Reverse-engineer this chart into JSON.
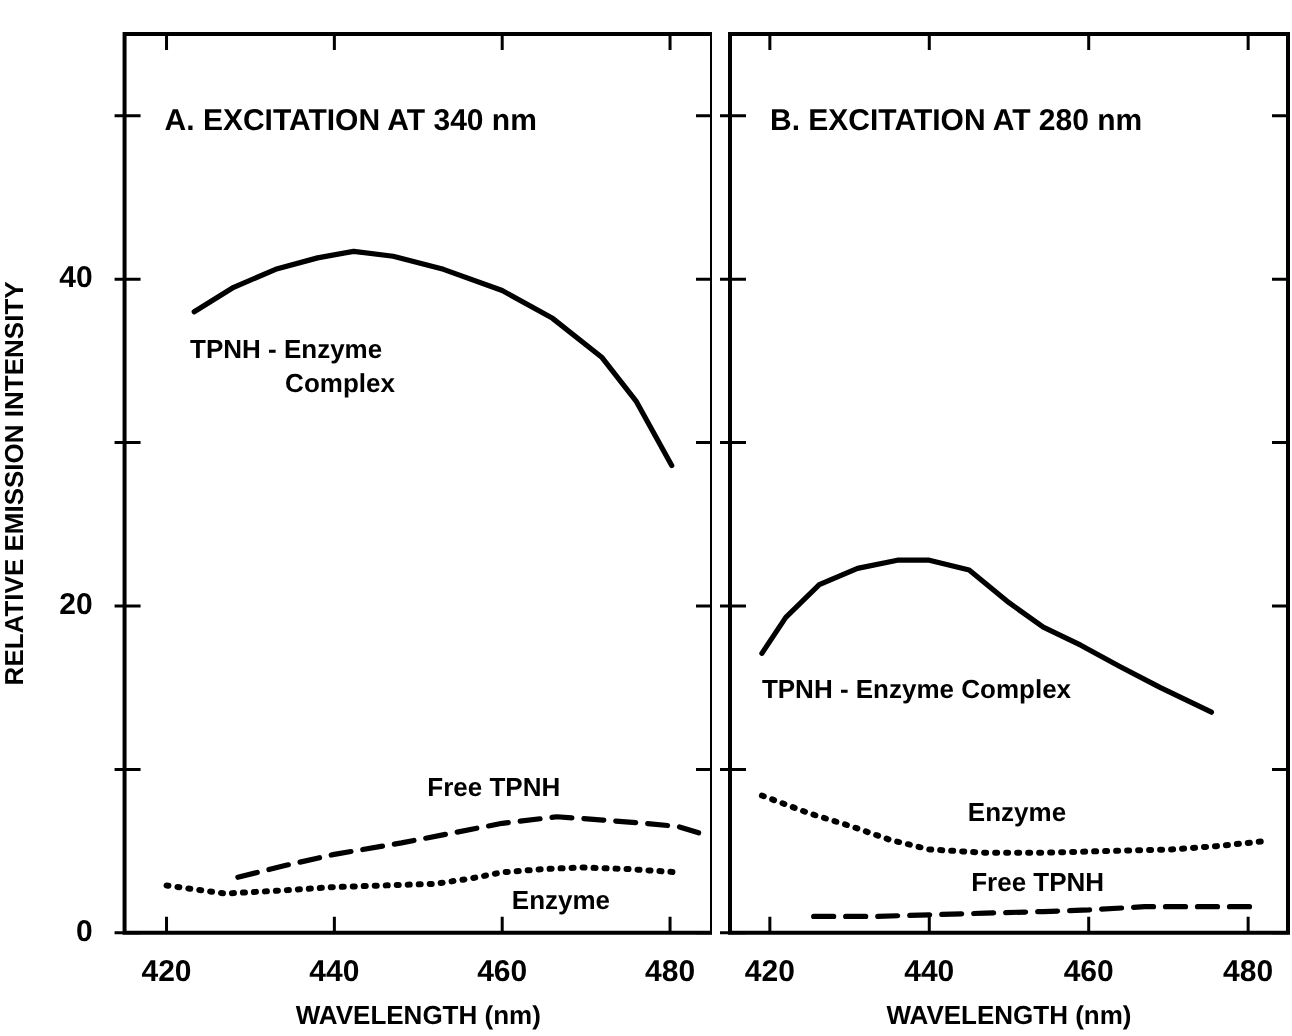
{
  "chart_data": [
    {
      "type": "line",
      "title": "A. EXCITATION AT 340 nm",
      "xlabel": "WAVELENGTH (nm)",
      "ylabel": "RELATIVE EMISSION INTENSITY",
      "xlim": [
        415,
        485
      ],
      "xticks": [
        420,
        440,
        460,
        480
      ],
      "ylim": [
        0,
        55
      ],
      "yticks": [
        0,
        {
          "value": 10,
          "label": null
        },
        20,
        {
          "value": 30,
          "label": null
        },
        40,
        {
          "value": 50,
          "label": null
        }
      ],
      "series": [
        {
          "name": "TPNH - Enzyme Complex",
          "color": "#000000",
          "line_style": "solid",
          "x": [
            423.3,
            428,
            433,
            438,
            442.3,
            447,
            453,
            460,
            466,
            471.9,
            476,
            480.2
          ],
          "values": [
            38,
            39.5,
            40.6,
            41.3,
            41.7,
            41.4,
            40.6,
            39.3,
            37.6,
            35.2,
            32.5,
            28.6
          ]
        },
        {
          "name": "Free TPNH",
          "color": "#000000",
          "line_style": "dashed",
          "x": [
            428.5,
            434,
            440,
            448,
            454,
            460,
            466.5,
            472,
            477,
            481,
            483.5
          ],
          "values": [
            3.4,
            4.1,
            4.8,
            5.5,
            6.1,
            6.7,
            7.1,
            6.9,
            6.7,
            6.5,
            6.1
          ]
        },
        {
          "name": "Enzyme",
          "color": "#000000",
          "line_style": "dotted",
          "x": [
            420,
            427,
            434,
            440,
            446,
            452,
            456,
            460,
            465,
            469.5,
            475,
            481
          ],
          "values": [
            2.9,
            2.4,
            2.6,
            2.8,
            2.9,
            3,
            3.3,
            3.7,
            3.9,
            4,
            3.9,
            3.7
          ]
        }
      ]
    },
    {
      "type": "line",
      "title": "B. EXCITATION AT 280 nm",
      "xlabel": "WAVELENGTH (nm)",
      "xlim": [
        415,
        485
      ],
      "xticks": [
        420,
        440,
        460,
        480
      ],
      "ylim": [
        0,
        55
      ],
      "yticks": [
        0,
        {
          "value": 10,
          "label": null
        },
        {
          "value": 20,
          "label": null
        },
        {
          "value": 30,
          "label": null
        },
        {
          "value": 40,
          "label": null
        },
        {
          "value": 50,
          "label": null
        }
      ],
      "tick_labels": "x",
      "series": [
        {
          "name": "TPNH - Enzyme Complex",
          "color": "#000000",
          "line_style": "solid",
          "x": [
            419,
            422,
            426.2,
            431,
            436,
            440,
            445,
            450,
            454.3,
            459,
            463.9,
            469,
            475.4
          ],
          "values": [
            17.1,
            19.3,
            21.3,
            22.3,
            22.8,
            22.8,
            22.2,
            20.2,
            18.7,
            17.6,
            16.3,
            15,
            13.5
          ]
        },
        {
          "name": "Enzyme",
          "color": "#000000",
          "line_style": "dotted",
          "x": [
            419,
            425,
            430.3,
            435,
            440,
            447,
            454.3,
            462,
            470.4,
            476,
            481.9
          ],
          "values": [
            8.4,
            7.3,
            6.5,
            5.7,
            5.1,
            4.9,
            4.9,
            5,
            5.1,
            5.3,
            5.6
          ]
        },
        {
          "name": "Free TPNH",
          "color": "#000000",
          "line_style": "dashed",
          "x": [
            425.5,
            433,
            440,
            447,
            454.3,
            460,
            467,
            474,
            480.2
          ],
          "values": [
            1,
            1,
            1.1,
            1.2,
            1.3,
            1.4,
            1.6,
            1.6,
            1.6
          ]
        }
      ]
    }
  ]
}
